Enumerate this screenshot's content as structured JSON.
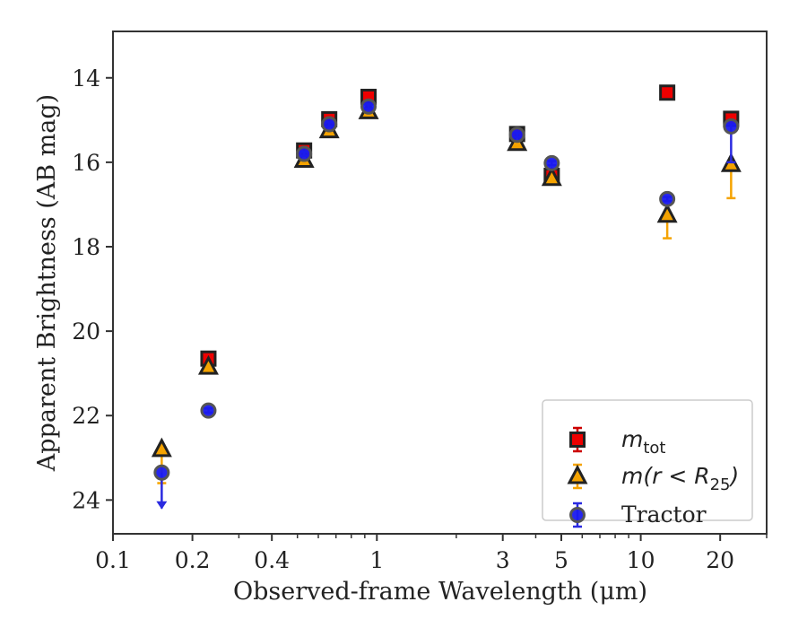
{
  "chart_data": {
    "type": "scatter",
    "xlabel": "Observed-frame Wavelength (μm)",
    "ylabel": "Apparent Brightness (AB mag)",
    "x_scale": "log",
    "xlim": [
      0.1,
      30
    ],
    "ylim": [
      24.8,
      12.9
    ],
    "y_inverted": true,
    "grid": false,
    "legend_position": "bottom-right",
    "x_ticks": [
      {
        "value": 0.1,
        "label": "0.1"
      },
      {
        "value": 0.2,
        "label": "0.2"
      },
      {
        "value": 0.4,
        "label": "0.4"
      },
      {
        "value": 1,
        "label": "1"
      },
      {
        "value": 3,
        "label": "3"
      },
      {
        "value": 5,
        "label": "5"
      },
      {
        "value": 10,
        "label": "10"
      },
      {
        "value": 20,
        "label": "20"
      }
    ],
    "y_ticks": [
      {
        "value": 14,
        "label": "14"
      },
      {
        "value": 16,
        "label": "16"
      },
      {
        "value": 18,
        "label": "18"
      },
      {
        "value": 20,
        "label": "20"
      },
      {
        "value": 22,
        "label": "22"
      },
      {
        "value": 24,
        "label": "24"
      }
    ],
    "series": [
      {
        "name": "m_tot",
        "label_parts": {
          "base": "m",
          "sub": "tot"
        },
        "marker": "square",
        "color": "#ee0000",
        "edge": "#222222",
        "error_color": "#cc0000",
        "points": [
          {
            "x": 0.23,
            "y": 20.65,
            "err": 0.05
          },
          {
            "x": 0.53,
            "y": 15.72,
            "err": 0.05
          },
          {
            "x": 0.66,
            "y": 14.98,
            "err": 0.05
          },
          {
            "x": 0.93,
            "y": 14.45,
            "err": 0.05
          },
          {
            "x": 3.4,
            "y": 15.33,
            "err": 0.05
          },
          {
            "x": 4.6,
            "y": 16.32,
            "err": 0.1
          },
          {
            "x": 12.6,
            "y": 14.35,
            "err": 0.05
          },
          {
            "x": 22.0,
            "y": 14.97,
            "err": 0.05
          }
        ]
      },
      {
        "name": "m(r<R25)",
        "label_parts": {
          "base": "m(r < R",
          "sub": "25",
          "tail": ")"
        },
        "marker": "triangle",
        "color": "#f5a300",
        "edge": "#222222",
        "error_color": "#f5a300",
        "points": [
          {
            "x": 0.153,
            "y": 22.8,
            "err_lo": 0.05,
            "err_hi": 0.8
          },
          {
            "x": 0.23,
            "y": 20.85,
            "err": 0.05
          },
          {
            "x": 0.53,
            "y": 15.95,
            "err": 0.05
          },
          {
            "x": 0.66,
            "y": 15.25,
            "err": 0.05
          },
          {
            "x": 0.93,
            "y": 14.8,
            "err": 0.05
          },
          {
            "x": 3.4,
            "y": 15.55,
            "err": 0.05
          },
          {
            "x": 4.6,
            "y": 16.38,
            "err": 0.05
          },
          {
            "x": 12.6,
            "y": 17.25,
            "err_lo": 0.05,
            "err_hi": 0.55
          },
          {
            "x": 22.0,
            "y": 16.05,
            "err_lo": 0.05,
            "err_hi": 0.8
          }
        ]
      },
      {
        "name": "Tractor",
        "marker": "circle",
        "color": "#1a1aee",
        "edge": "#555555",
        "error_color": "#2a2ae0",
        "points": [
          {
            "x": 0.153,
            "y": 23.35,
            "upper_limit_to": 24.2
          },
          {
            "x": 0.23,
            "y": 21.88,
            "err": 0.05
          },
          {
            "x": 0.53,
            "y": 15.8,
            "err": 0.05
          },
          {
            "x": 0.66,
            "y": 15.1,
            "err": 0.05
          },
          {
            "x": 0.93,
            "y": 14.68,
            "err": 0.05
          },
          {
            "x": 3.4,
            "y": 15.35,
            "err": 0.05
          },
          {
            "x": 4.6,
            "y": 16.02,
            "err": 0.05
          },
          {
            "x": 12.6,
            "y": 16.87,
            "err": 0.05
          },
          {
            "x": 22.0,
            "y": 15.15,
            "err_lo": 0.05,
            "err_hi": 0.85
          }
        ]
      }
    ]
  }
}
